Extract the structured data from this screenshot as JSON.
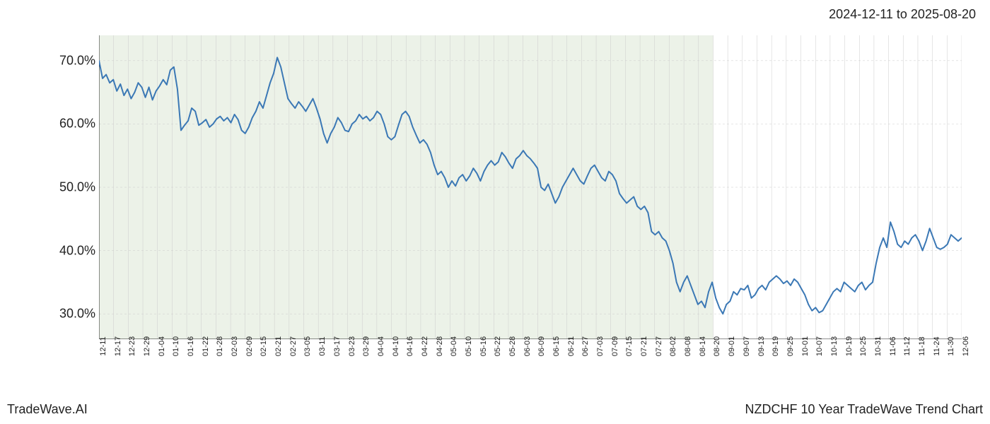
{
  "top_right_label": "2024-12-11 to 2025-08-20",
  "bottom_left_label": "TradeWave.AI",
  "bottom_right_label": "NZDCHF 10 Year TradeWave Trend Chart",
  "chart": {
    "type": "line",
    "line_color": "#3b78b5",
    "line_width": 2,
    "background_color": "#ffffff",
    "highlight_fill": "#dce8d6",
    "highlight_opacity": 0.55,
    "grid_color": "#cccccc",
    "grid_width": 0.5,
    "axis_color": "#222222",
    "ylim": [
      26,
      74
    ],
    "yticks": [
      30.0,
      40.0,
      50.0,
      60.0,
      70.0
    ],
    "ytick_labels": [
      "30.0%",
      "40.0%",
      "50.0%",
      "60.0%",
      "70.0%"
    ],
    "xticks": [
      "12-11",
      "12-17",
      "12-23",
      "12-29",
      "01-04",
      "01-10",
      "01-16",
      "01-22",
      "01-28",
      "02-03",
      "02-09",
      "02-15",
      "02-21",
      "02-27",
      "03-05",
      "03-11",
      "03-17",
      "03-23",
      "03-29",
      "04-04",
      "04-10",
      "04-16",
      "04-22",
      "04-28",
      "05-04",
      "05-10",
      "05-16",
      "05-22",
      "05-28",
      "06-03",
      "06-09",
      "06-15",
      "06-21",
      "06-27",
      "07-03",
      "07-09",
      "07-15",
      "07-21",
      "07-27",
      "08-02",
      "08-08",
      "08-14",
      "08-20",
      "09-01",
      "09-07",
      "09-13",
      "09-19",
      "09-25",
      "10-01",
      "10-07",
      "10-13",
      "10-19",
      "10-25",
      "10-31",
      "11-06",
      "11-12",
      "11-18",
      "11-24",
      "11-30",
      "12-06"
    ],
    "highlight_start_x": "12-11",
    "highlight_end_x": "08-20",
    "series": [
      70.0,
      67.2,
      67.8,
      66.5,
      67.0,
      65.2,
      66.3,
      64.5,
      65.5,
      64.0,
      65.0,
      66.5,
      65.8,
      64.2,
      65.8,
      63.8,
      65.2,
      66.0,
      67.0,
      66.2,
      68.5,
      69.0,
      65.5,
      59.0,
      59.8,
      60.5,
      62.5,
      62.0,
      59.8,
      60.2,
      60.7,
      59.5,
      60.0,
      60.8,
      61.2,
      60.5,
      61.0,
      60.2,
      61.5,
      60.7,
      59.0,
      58.5,
      59.5,
      61.0,
      62.0,
      63.5,
      62.5,
      64.5,
      66.5,
      68.0,
      70.5,
      69.0,
      66.5,
      64.0,
      63.2,
      62.5,
      63.5,
      62.8,
      62.0,
      63.0,
      64.0,
      62.5,
      60.8,
      58.5,
      57.0,
      58.5,
      59.5,
      61.0,
      60.2,
      59.0,
      58.8,
      60.0,
      60.5,
      61.5,
      60.8,
      61.2,
      60.5,
      61.0,
      62.0,
      61.5,
      60.0,
      58.0,
      57.5,
      58.0,
      59.8,
      61.5,
      62.0,
      61.2,
      59.5,
      58.2,
      57.0,
      57.5,
      56.8,
      55.5,
      53.5,
      52.0,
      52.5,
      51.5,
      50.0,
      51.0,
      50.2,
      51.5,
      52.0,
      51.0,
      51.8,
      53.0,
      52.2,
      51.0,
      52.5,
      53.5,
      54.2,
      53.5,
      54.0,
      55.5,
      54.8,
      53.8,
      53.0,
      54.5,
      55.0,
      55.8,
      55.0,
      54.5,
      53.8,
      53.0,
      50.0,
      49.5,
      50.5,
      49.0,
      47.5,
      48.5,
      50.0,
      51.0,
      52.0,
      53.0,
      52.0,
      51.0,
      50.5,
      51.8,
      53.0,
      53.5,
      52.5,
      51.5,
      51.0,
      52.5,
      52.0,
      51.0,
      49.0,
      48.2,
      47.5,
      48.0,
      48.5,
      47.0,
      46.5,
      47.0,
      46.0,
      43.0,
      42.5,
      43.0,
      42.0,
      41.5,
      40.0,
      38.0,
      35.0,
      33.5,
      35.0,
      36.0,
      34.5,
      33.0,
      31.5,
      32.0,
      31.0,
      33.5,
      35.0,
      32.5,
      31.0,
      30.0,
      31.5,
      32.0,
      33.5,
      33.0,
      34.0,
      33.8,
      34.5,
      32.5,
      33.0,
      34.0,
      34.5,
      33.8,
      35.0,
      35.5,
      36.0,
      35.5,
      34.8,
      35.2,
      34.5,
      35.5,
      35.0,
      34.0,
      33.0,
      31.5,
      30.5,
      31.0,
      30.2,
      30.5,
      31.5,
      32.5,
      33.5,
      34.0,
      33.5,
      35.0,
      34.5,
      34.0,
      33.5,
      34.5,
      35.0,
      33.8,
      34.5,
      35.0,
      38.0,
      40.5,
      42.0,
      40.5,
      44.5,
      43.0,
      41.0,
      40.5,
      41.5,
      41.0,
      42.0,
      42.5,
      41.5,
      40.0,
      41.5,
      43.5,
      42.0,
      40.5,
      40.2,
      40.5,
      41.0,
      42.5,
      42.0,
      41.5,
      42.0
    ],
    "label_fontsize": 18,
    "tick_fontsize_x": 11
  }
}
